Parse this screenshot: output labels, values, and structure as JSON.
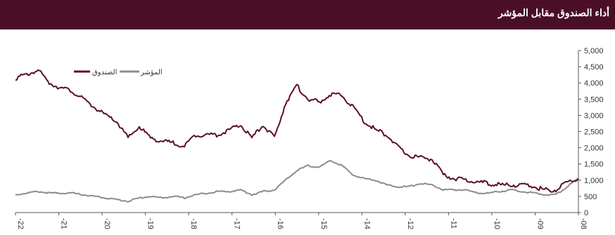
{
  "header": {
    "title": "أداء الصندوق مقابل المؤشر"
  },
  "colors": {
    "header_bg": "#4a0f26",
    "fund": "#5c0f2a",
    "index": "#8c8c8c",
    "axis": "#555555"
  },
  "chart_data": {
    "type": "line",
    "title": "أداء الصندوق مقابل المؤشر",
    "xlabel": "",
    "ylabel": "",
    "x_ticks": [
      "-22",
      "-21",
      "-20",
      "-19",
      "-18",
      "-17",
      "-16",
      "-15",
      "-14",
      "-12",
      "-11",
      "-10",
      "-09",
      "-08"
    ],
    "y_ticks": [
      "5,000",
      "4,500",
      "4,000",
      "3,500",
      "3,000",
      "2,500",
      "2,000",
      "1,500",
      "1,000",
      "500",
      "0"
    ],
    "ylim": [
      0,
      5000
    ],
    "y_axis_position": "right",
    "grid": false,
    "legend_position": "top-left",
    "series": [
      {
        "name": "الصندوق",
        "color": "#5c0f2a",
        "values": [
          4150,
          4250,
          4400,
          4000,
          3850,
          3750,
          3500,
          3250,
          3000,
          2800,
          2300,
          2650,
          2300,
          2200,
          2150,
          2050,
          2400,
          2400,
          2400,
          2550,
          2700,
          2300,
          2700,
          2300,
          3400,
          3900,
          3500,
          3400,
          3650,
          3600,
          3250,
          2800,
          2550,
          2400,
          2000,
          1750,
          1700,
          1650,
          1150,
          1050,
          1000,
          950,
          900,
          850,
          850,
          850,
          800,
          700,
          700,
          950,
          1050
        ]
      },
      {
        "name": "المؤشر",
        "color": "#8c8c8c",
        "values": [
          550,
          600,
          650,
          600,
          600,
          600,
          550,
          500,
          450,
          400,
          350,
          450,
          500,
          450,
          500,
          450,
          550,
          600,
          650,
          650,
          700,
          550,
          650,
          700,
          1000,
          1300,
          1450,
          1400,
          1600,
          1450,
          1150,
          1050,
          1000,
          850,
          800,
          800,
          900,
          850,
          700,
          700,
          700,
          600,
          600,
          650,
          700,
          650,
          600,
          550,
          550,
          800,
          1050
        ]
      }
    ]
  }
}
